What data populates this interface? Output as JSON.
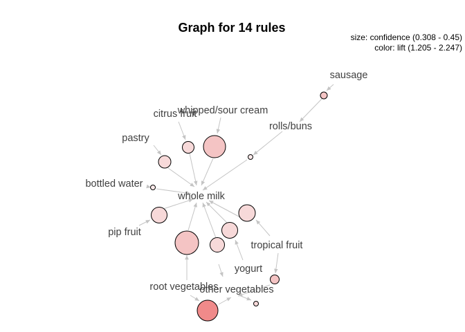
{
  "title": "Graph for 14 rules",
  "legend": {
    "size": "size: confidence (0.308 - 0.45)",
    "color": "color: lift (1.205 - 2.247)"
  },
  "items": {
    "sausage": "sausage",
    "rolls_buns": "rolls/buns",
    "whipped_sour_cream": "whipped/sour cream",
    "citrus_fruit": "citrus fruit",
    "pastry": "pastry",
    "bottled_water": "bottled water",
    "whole_milk": "whole milk",
    "pip_fruit": "pip fruit",
    "tropical_fruit": "tropical fruit",
    "yogurt": "yogurt",
    "root_vegetables": "root vegetables",
    "other_vegetables": "other vegetables"
  },
  "colors": {
    "edge": "#c4c4c4",
    "label": "#404040",
    "node_light": "#f7d9d9",
    "node_mid": "#f4c4c4",
    "node_dark": "#f08a8a"
  }
}
